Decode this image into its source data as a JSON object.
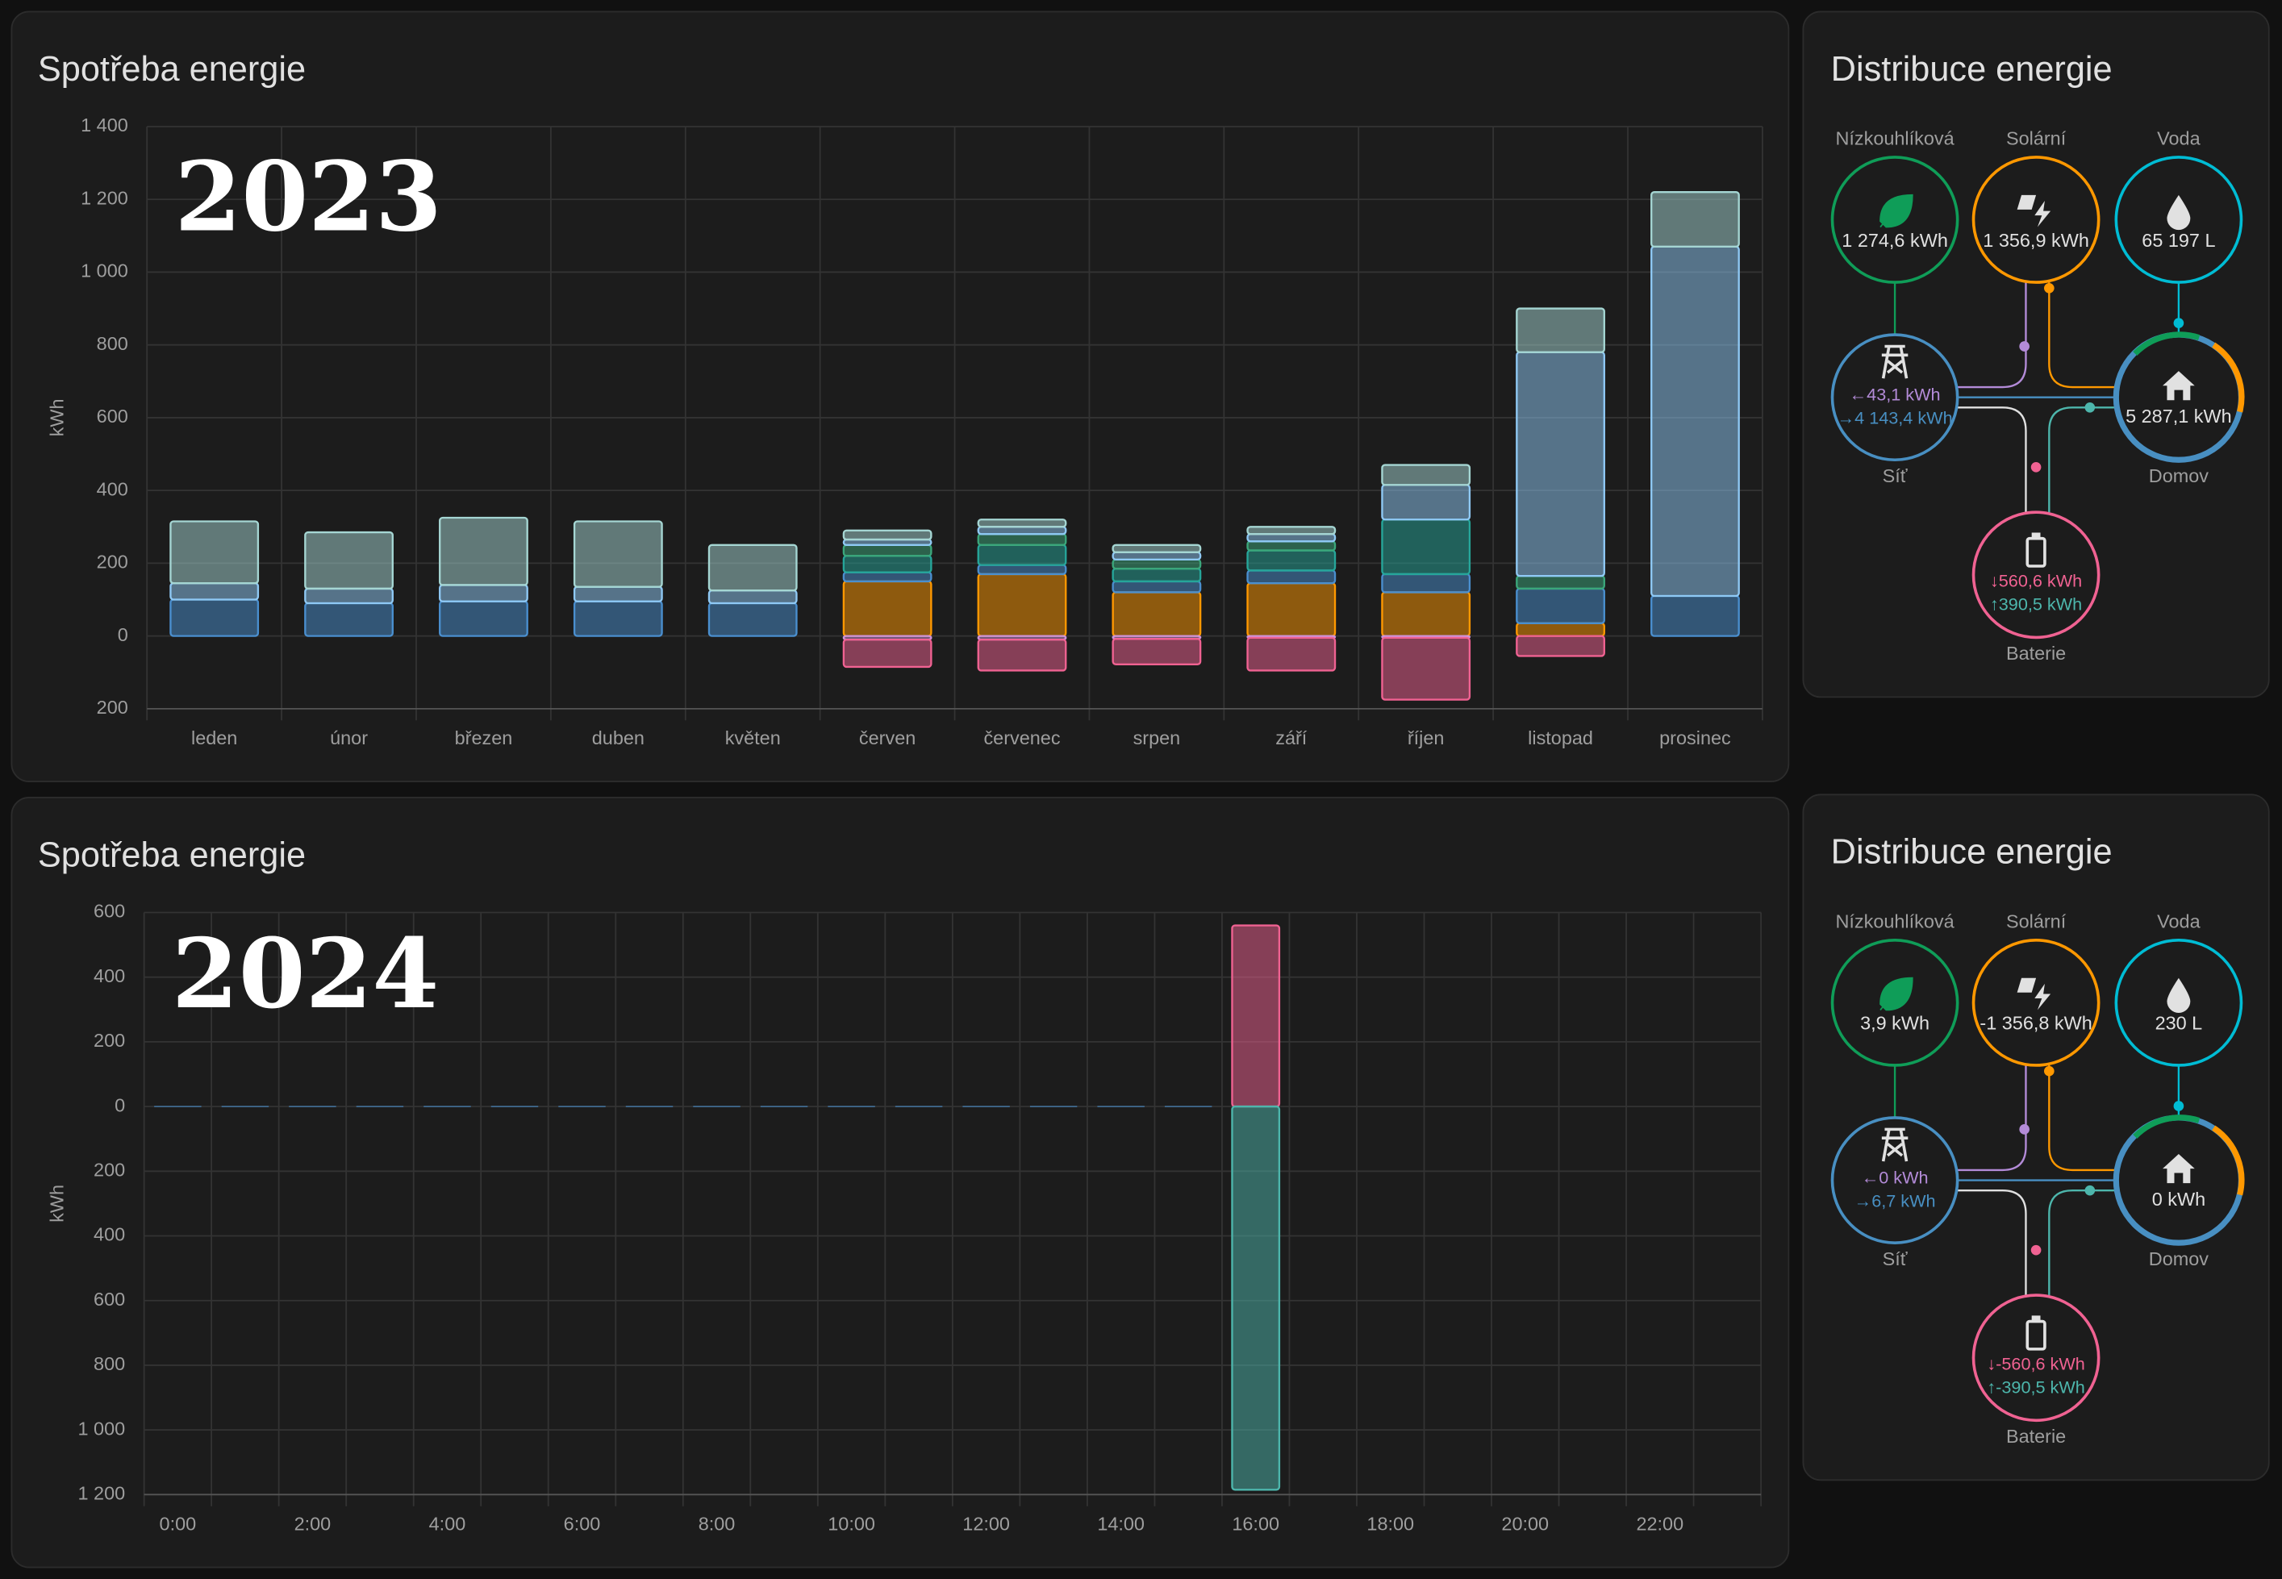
{
  "chart_data": [
    {
      "type": "bar",
      "title": "Spotřeba energie",
      "annotation": "2023",
      "y_label": "kWh",
      "stacked": true,
      "grid": true,
      "categories": [
        "leden",
        "únor",
        "březen",
        "duben",
        "květen",
        "červen",
        "červenec",
        "srpen",
        "září",
        "říjen",
        "listopad",
        "prosinec"
      ],
      "ylim": [
        -200,
        1400
      ],
      "yticks": [
        {
          "value": -200,
          "label": "200"
        },
        0,
        200,
        400,
        600,
        800,
        {
          "value": 1000,
          "label": "1 000"
        },
        {
          "value": 1200,
          "label": "1 200"
        },
        {
          "value": 1400,
          "label": "1 400"
        }
      ],
      "series": [
        {
          "color": "#ff9800",
          "values": [
            null,
            null,
            null,
            null,
            null,
            150,
            170,
            120,
            145,
            120,
            35,
            null
          ]
        },
        {
          "color": "#4a8fcf",
          "values": [
            100,
            90,
            95,
            95,
            90,
            25,
            25,
            30,
            35,
            50,
            95,
            110
          ]
        },
        {
          "color": "#26a69a",
          "values": [
            null,
            null,
            null,
            null,
            null,
            45,
            55,
            35,
            55,
            150,
            null,
            null
          ]
        },
        {
          "color": "#3ba77b",
          "values": [
            null,
            null,
            null,
            null,
            null,
            30,
            30,
            25,
            25,
            null,
            35,
            null
          ]
        },
        {
          "color": "#8fc9f5",
          "values": [
            45,
            40,
            45,
            40,
            35,
            15,
            20,
            20,
            20,
            95,
            615,
            960
          ]
        },
        {
          "color": "#a5d6d3",
          "values": [
            170,
            155,
            185,
            180,
            125,
            25,
            20,
            20,
            20,
            55,
            120,
            150
          ]
        },
        {
          "color": "#ce93d8",
          "values": [
            null,
            null,
            null,
            null,
            null,
            -10,
            -10,
            -8,
            -5,
            -5,
            null,
            null
          ]
        },
        {
          "color": "#f06292",
          "values": [
            null,
            null,
            null,
            null,
            null,
            -75,
            -85,
            -70,
            -90,
            -170,
            -55,
            null
          ]
        }
      ]
    },
    {
      "type": "bar",
      "title": "Spotřeba energie",
      "annotation": "2024",
      "y_label": "kWh",
      "stacked": true,
      "grid": true,
      "categories": [
        "0:00",
        null,
        "2:00",
        null,
        "4:00",
        null,
        "6:00",
        null,
        "8:00",
        null,
        "10:00",
        null,
        "12:00",
        null,
        "14:00",
        null,
        "16:00",
        null,
        "18:00",
        null,
        "20:00",
        null,
        "22:00",
        null
      ],
      "ylim": [
        -1200,
        600
      ],
      "yticks": [
        {
          "value": -1200,
          "label": "1 200"
        },
        {
          "value": -1000,
          "label": "1 000"
        },
        {
          "value": -800,
          "label": "800"
        },
        {
          "value": -600,
          "label": "600"
        },
        {
          "value": -400,
          "label": "400"
        },
        {
          "value": -200,
          "label": "200"
        },
        0,
        200,
        400,
        600
      ],
      "series": [
        {
          "color": "#4a8fcf",
          "values": [
            0,
            0,
            0,
            0,
            0,
            0,
            0,
            0,
            0,
            0,
            0,
            0,
            0,
            0,
            0,
            0,
            null,
            null,
            null,
            null,
            null,
            null,
            null,
            null
          ]
        },
        {
          "color": "#f06292",
          "values": [
            null,
            null,
            null,
            null,
            null,
            null,
            null,
            null,
            null,
            null,
            null,
            null,
            null,
            null,
            null,
            null,
            560,
            null,
            null,
            null,
            null,
            null,
            null,
            null
          ]
        },
        {
          "color": "#4db6ac",
          "values": [
            null,
            null,
            null,
            null,
            null,
            null,
            null,
            null,
            null,
            null,
            null,
            null,
            null,
            null,
            null,
            null,
            -1185,
            null,
            null,
            null,
            null,
            null,
            null,
            null
          ]
        }
      ]
    }
  ],
  "distribution": [
    {
      "title": "Distribuce energie",
      "low_carbon": {
        "label": "Nízkouhlíková",
        "value": "1 274,6 kWh"
      },
      "solar": {
        "label": "Solární",
        "value": "1 356,9 kWh"
      },
      "water": {
        "label": "Voda",
        "value": "65 197 L"
      },
      "grid": {
        "label": "Síť",
        "from": "←43,1 kWh",
        "to": "→4 143,4 kWh"
      },
      "home": {
        "label": "Domov",
        "value": "5 287,1 kWh"
      },
      "battery": {
        "label": "Baterie",
        "out": "↓560,6 kWh",
        "in": "↑390,5 kWh"
      }
    },
    {
      "title": "Distribuce energie",
      "low_carbon": {
        "label": "Nízkouhlíková",
        "value": "3,9 kWh"
      },
      "solar": {
        "label": "Solární",
        "value": "-1 356,8 kWh"
      },
      "water": {
        "label": "Voda",
        "value": "230 L"
      },
      "grid": {
        "label": "Síť",
        "from": "←0 kWh",
        "to": "→6,7 kWh"
      },
      "home": {
        "label": "Domov",
        "value": "0 kWh"
      },
      "battery": {
        "label": "Baterie",
        "out": "↓-560,6 kWh",
        "in": "↑-390,5 kWh"
      }
    }
  ]
}
